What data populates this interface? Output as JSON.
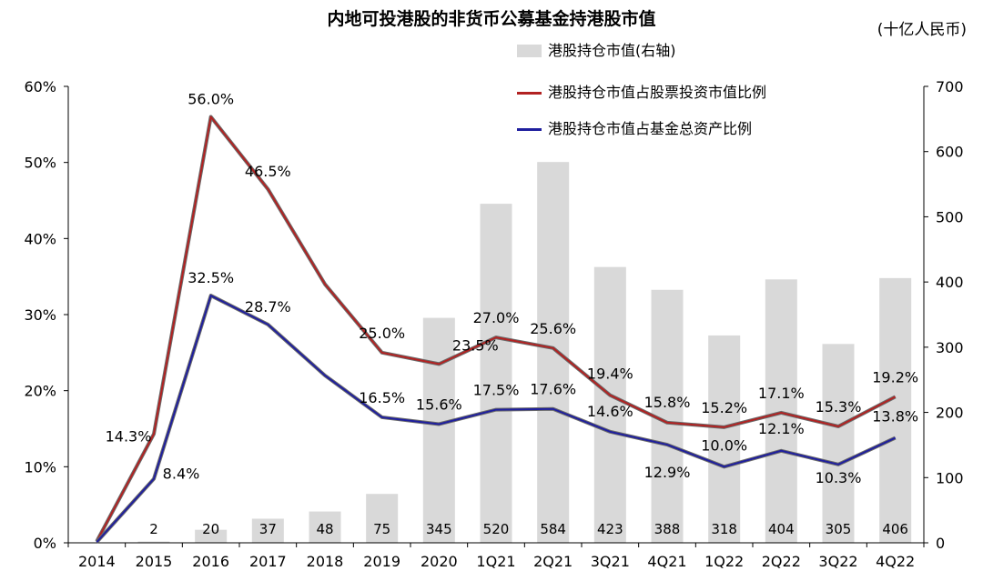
{
  "title": "内地可投港股的非货币公募基金持港股市值",
  "unit": "(十亿人民币)",
  "colors": {
    "bar": "#d9d9d9",
    "red": "#b22222",
    "blue": "#1f1f9e"
  },
  "legend": [
    {
      "label": "港股持仓市值(右轴)",
      "type": "bar",
      "color": "#d9d9d9"
    },
    {
      "label": "港股持仓市值占股票投资市值比例",
      "type": "line",
      "color": "#b22222"
    },
    {
      "label": "港股持仓市值占基金总资产比例",
      "type": "line",
      "color": "#1f1f9e"
    }
  ],
  "chart_data": {
    "type": "bar+line",
    "title": "内地可投港股的非货币公募基金持港股市值",
    "categories": [
      "2014",
      "2015",
      "2016",
      "2017",
      "2018",
      "2019",
      "2020",
      "1Q21",
      "2Q21",
      "3Q21",
      "4Q21",
      "1Q22",
      "2Q22",
      "3Q22",
      "4Q22"
    ],
    "bars": {
      "name": "港股持仓市值(右轴)",
      "axis": "right",
      "values": [
        0,
        2,
        20,
        37,
        48,
        75,
        345,
        520,
        584,
        423,
        388,
        318,
        404,
        305,
        406
      ],
      "labels": [
        "",
        "2",
        "20",
        "37",
        "48",
        "75",
        "345",
        "520",
        "584",
        "423",
        "388",
        "318",
        "404",
        "305",
        "406"
      ]
    },
    "series": [
      {
        "name": "港股持仓市值占股票投资市值比例",
        "axis": "left",
        "color": "#b22222",
        "values": [
          0.2,
          14.3,
          56.0,
          46.5,
          34.0,
          25.0,
          23.5,
          27.0,
          25.6,
          19.4,
          15.8,
          15.2,
          17.1,
          15.3,
          19.2
        ],
        "labels": [
          "",
          "14.3%",
          "56.0%",
          "46.5%",
          "",
          "25.0%",
          "23.5%",
          "27.0%",
          "25.6%",
          "19.4%",
          "15.8%",
          "15.2%",
          "17.1%",
          "15.3%",
          "19.2%"
        ]
      },
      {
        "name": "港股持仓市值占基金总资产比例",
        "axis": "left",
        "color": "#1f1f9e",
        "values": [
          0.1,
          8.4,
          32.5,
          28.7,
          22.0,
          16.5,
          15.6,
          17.5,
          17.6,
          14.6,
          12.9,
          10.0,
          12.1,
          10.3,
          13.8
        ],
        "labels": [
          "",
          "8.4%",
          "32.5%",
          "28.7%",
          "",
          "16.5%",
          "15.6%",
          "17.5%",
          "17.6%",
          "14.6%",
          "12.9%",
          "10.0%",
          "12.1%",
          "10.3%",
          "13.8%"
        ]
      }
    ],
    "y_left": {
      "ticks": [
        "0%",
        "10%",
        "20%",
        "30%",
        "40%",
        "50%",
        "60%"
      ],
      "ylim": [
        0,
        60
      ]
    },
    "y_right": {
      "ticks": [
        "0",
        "100",
        "200",
        "300",
        "400",
        "500",
        "600",
        "700"
      ],
      "ylim": [
        0,
        700
      ]
    },
    "grid": false,
    "legend_position": "top-right"
  }
}
